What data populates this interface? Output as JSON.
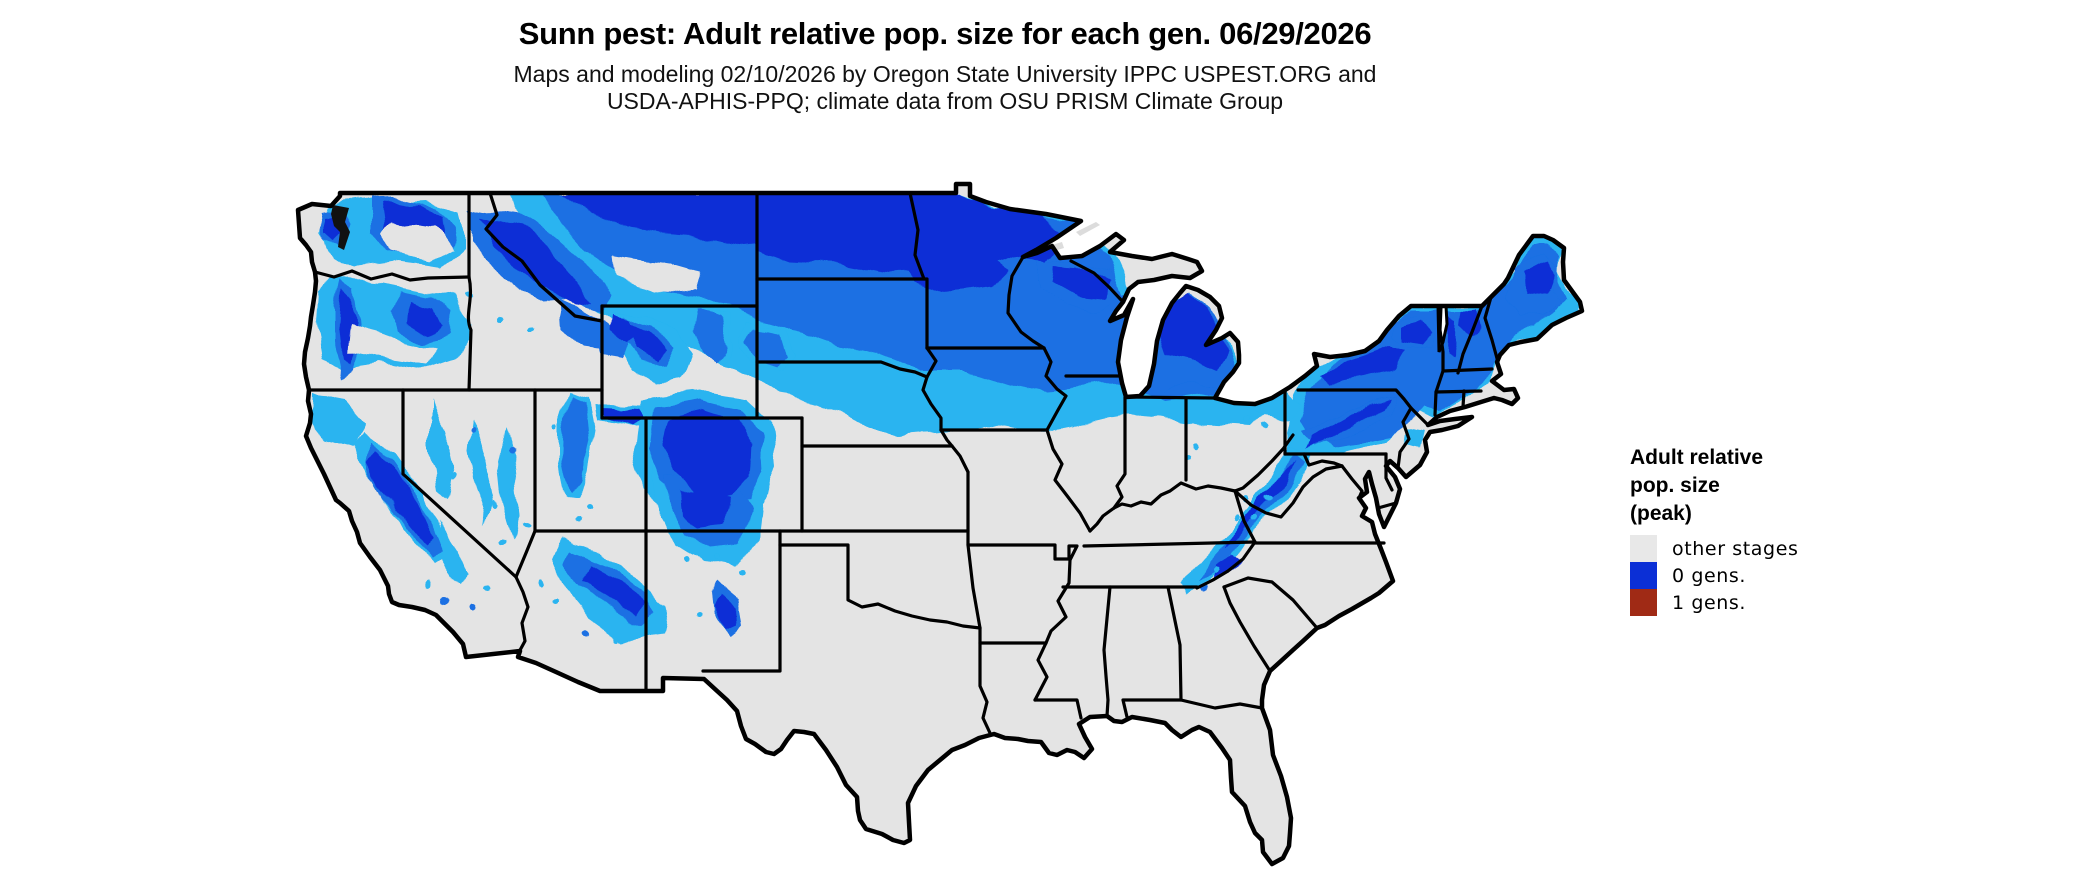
{
  "header": {
    "title": "Sunn pest: Adult relative pop. size for each gen. 06/29/2026",
    "subtitle_line1": "Maps and modeling 02/10/2026 by Oregon State University IPPC USPEST.ORG and",
    "subtitle_line2": "USDA-APHIS-PPQ; climate data from OSU PRISM Climate Group"
  },
  "legend": {
    "title_lines": [
      "Adult relative",
      "pop. size",
      "(peak)"
    ],
    "items": [
      {
        "label": "other stages",
        "color": "#e8e8e8"
      },
      {
        "label": "0 gens.",
        "color": "#0b2fd6"
      },
      {
        "label": "1 gens.",
        "color": "#a02a15"
      }
    ]
  },
  "map": {
    "name": "contiguous-united-states",
    "background_color": "#ffffff",
    "land_color": "#e4e4e4",
    "border_color": "#000000",
    "raster_palette": {
      "low": "#29b4f0",
      "mid": "#1a6fe3",
      "high": "#0b2fd6"
    }
  }
}
